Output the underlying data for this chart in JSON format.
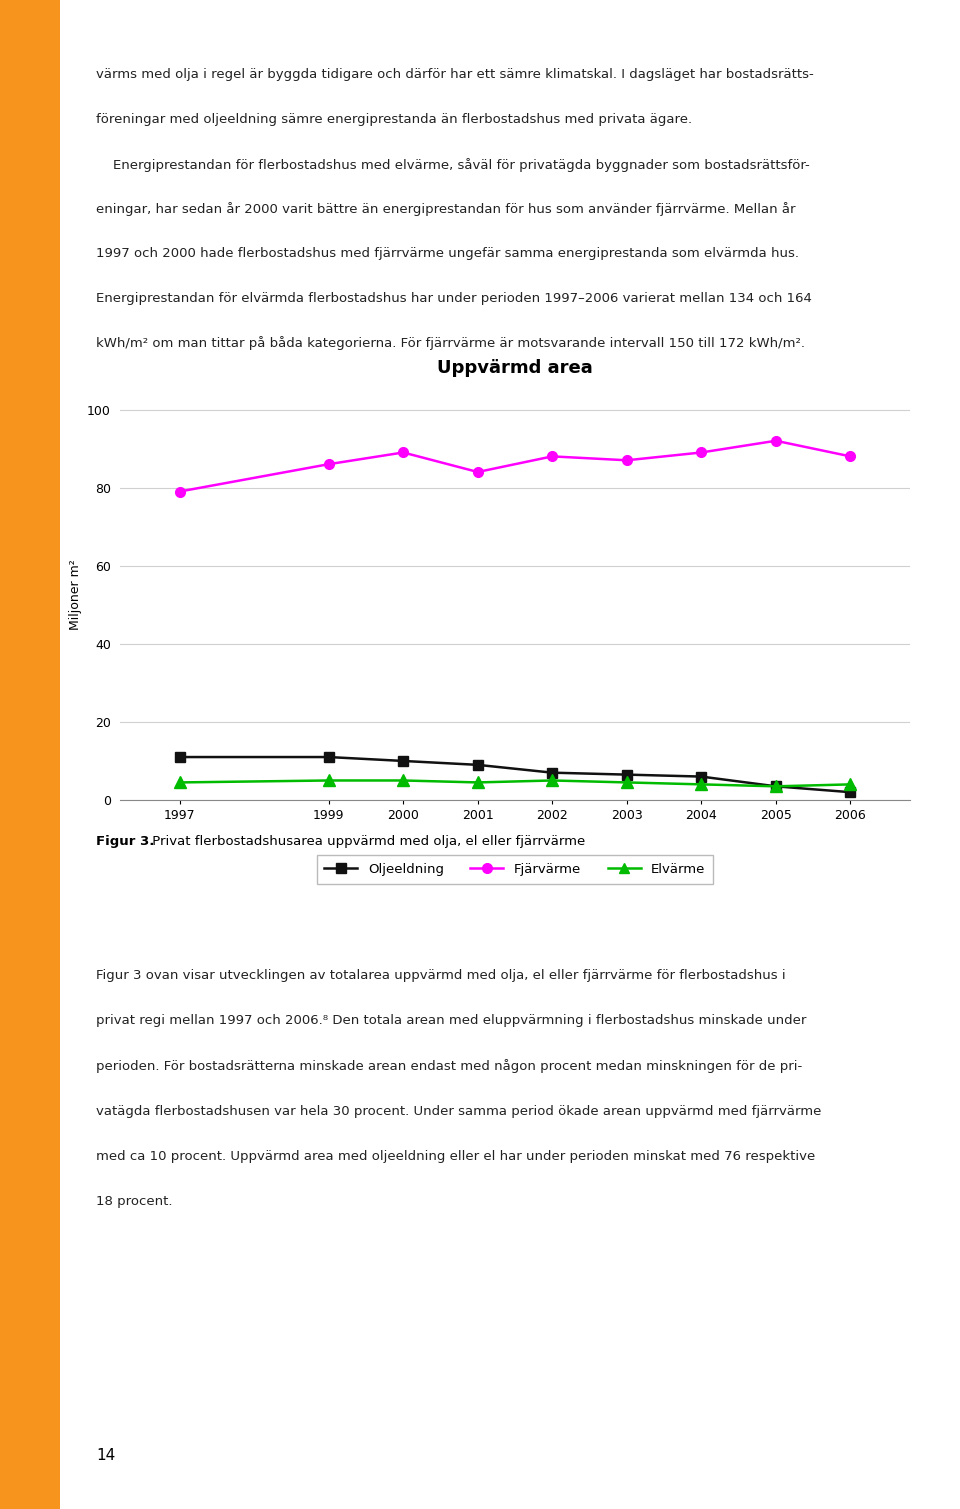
{
  "title": "Uppvärmd area",
  "ylabel": "Miljoner m²",
  "years": [
    1997,
    1999,
    2000,
    2001,
    2002,
    2003,
    2004,
    2005,
    2006
  ],
  "fjarvarme": [
    79,
    86,
    89,
    84,
    88,
    87,
    89,
    92,
    88
  ],
  "oljeeldning": [
    11,
    11,
    10,
    9,
    7,
    6.5,
    6,
    3.5,
    2
  ],
  "elvarme": [
    4.5,
    5,
    5,
    4.5,
    5,
    4.5,
    4,
    3.5,
    4
  ],
  "fjarvarme_color": "#ff00ff",
  "oljeeldning_color": "#111111",
  "elvarme_color": "#00bb00",
  "grid_color": "#d0d0d0",
  "yticks": [
    0,
    20,
    40,
    60,
    80,
    100
  ],
  "legend_labels": [
    "Oljeeldning",
    "Fjärvärme",
    "Elvärme"
  ],
  "fig_caption_bold": "Figur 3.",
  "fig_caption_normal": " Privat flerbostadshusarea uppvärmd med olja, el eller fjärrvärme",
  "orange_color": "#f7941d",
  "background_color": "#ffffff",
  "page_number": "14",
  "top_text_line1": "värms med olja i regel är byggda tidigare och därför har ett sämre klimatskal. I dagsläget har bostadsrätts-",
  "top_text_line2": "föreningar med oljeeldning sämre energiprestanda än flerbostadshus med privata ägare.",
  "top_text_line3": "    Energiprestandan för flerbostadshus med elvärme, såväl för privatägda byggnader som bostadsrättsför-",
  "top_text_line4": "eningar, har sedan år 2000 varit bättre än energiprestandan för hus som använder fjärrvärme. Mellan år",
  "top_text_line5": "1997 och 2000 hade flerbostadshus med fjärrvärme ungefär samma energiprestanda som elvärmda hus.",
  "top_text_line6": "Energiprestandan för elvärmda flerbostadshus har under perioden 1997–2006 varierat mellan 134 och 164",
  "top_text_line7": "kWh/m² om man tittar på båda kategorierna. För fjärrvärme är motsvarande intervall 150 till 172 kWh/m².",
  "bottom_text_line1": "Figur 3 ovan visar utvecklingen av totalarea uppvärmd med olja, el eller fjärrvärme för flerbostadshus i",
  "bottom_text_line2": "privat regi mellan 1997 och 2006.⁸ Den totala arean med eluppvärmning i flerbostadshus minskade under",
  "bottom_text_line3": "perioden. För bostadsrätterna minskade arean endast med någon procent medan minskningen för de pri-",
  "bottom_text_line4": "vatägda flerbostadshusen var hela 30 procent. Under samma period ökade arean uppvärmd med fjärrvärme",
  "bottom_text_line5": "med ca 10 procent. Uppvärmd area med oljeeldning eller el har under perioden minskat med 76 respektive",
  "bottom_text_line6": "18 procent."
}
